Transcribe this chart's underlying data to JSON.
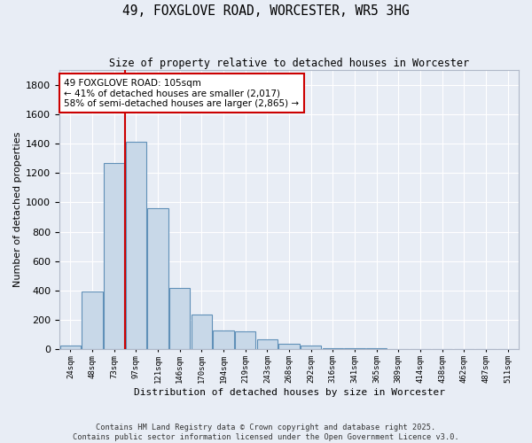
{
  "title": "49, FOXGLOVE ROAD, WORCESTER, WR5 3HG",
  "subtitle": "Size of property relative to detached houses in Worcester",
  "xlabel": "Distribution of detached houses by size in Worcester",
  "ylabel": "Number of detached properties",
  "bar_color": "#c8d8e8",
  "bar_edge_color": "#6090b8",
  "background_color": "#e8edf5",
  "grid_color": "#ffffff",
  "categories": [
    "24sqm",
    "48sqm",
    "73sqm",
    "97sqm",
    "121sqm",
    "146sqm",
    "170sqm",
    "194sqm",
    "219sqm",
    "243sqm",
    "268sqm",
    "292sqm",
    "316sqm",
    "341sqm",
    "365sqm",
    "389sqm",
    "414sqm",
    "438sqm",
    "462sqm",
    "487sqm",
    "511sqm"
  ],
  "values": [
    22,
    395,
    1265,
    1415,
    960,
    420,
    235,
    130,
    120,
    65,
    40,
    22,
    8,
    8,
    8,
    3,
    3,
    3,
    3,
    3,
    3
  ],
  "vline_x": 2.5,
  "vline_color": "#cc0000",
  "annotation_text": "49 FOXGLOVE ROAD: 105sqm\n← 41% of detached houses are smaller (2,017)\n58% of semi-detached houses are larger (2,865) →",
  "annotation_box_color": "#ffffff",
  "annotation_box_edge": "#cc0000",
  "ylim": [
    0,
    1900
  ],
  "yticks": [
    0,
    200,
    400,
    600,
    800,
    1000,
    1200,
    1400,
    1600,
    1800
  ],
  "footer_line1": "Contains HM Land Registry data © Crown copyright and database right 2025.",
  "footer_line2": "Contains public sector information licensed under the Open Government Licence v3.0."
}
